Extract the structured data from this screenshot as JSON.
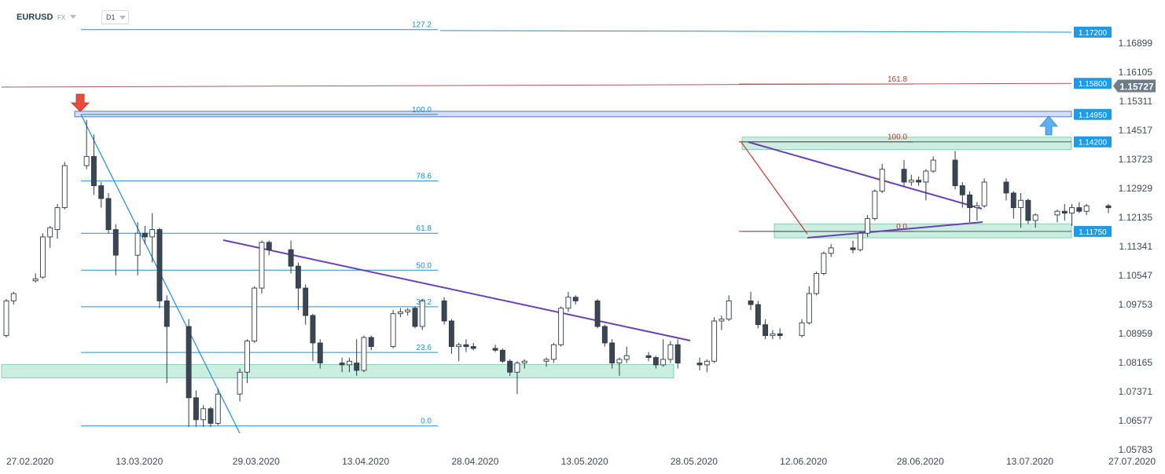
{
  "toolbar": {
    "symbol": "EURUSD",
    "market": "FX",
    "timeframe": "D1"
  },
  "colors": {
    "bull_body": "#ffffff",
    "bear_body": "#3a4654",
    "wick": "#2e3a46",
    "fib_blue": "#1e8fd5",
    "fib_red": "#c0392b",
    "trendline": "#6a3fb8",
    "zone": "#9fe2c6",
    "tag_blue": "#1e9be8",
    "current_tag": "#6e7b88",
    "arrow_down": "#e94b3c",
    "arrow_up": "#5ab0f0"
  },
  "chart_data": {
    "type": "candlestick",
    "title": "",
    "symbol": "EURUSD",
    "timeframe": "D1",
    "ylim": [
      1.0578,
      1.175
    ],
    "y_ticks": [
      "1.16899",
      "1.16105",
      "1.15311",
      "1.14517",
      "1.13723",
      "1.12929",
      "1.12135",
      "1.11341",
      "1.10547",
      "1.09753",
      "1.08959",
      "1.08165",
      "1.07371",
      "1.06577",
      "1.05783"
    ],
    "x_ticks": [
      "27.02.2020",
      "13.03.2020",
      "29.03.2020",
      "13.04.2020",
      "28.04.2020",
      "13.05.2020",
      "28.05.2020",
      "12.06.2020",
      "28.06.2020",
      "13.07.2020",
      "27.07.2020"
    ],
    "date_range": [
      "2020-02-27",
      "2020-07-27"
    ],
    "candles": [
      [
        "2020-02-27",
        1.089,
        1.099,
        1.0885,
        1.0985
      ],
      [
        "2020-02-28",
        1.0985,
        1.101,
        1.0975,
        1.1005
      ],
      [
        "2020-03-02",
        1.104,
        1.106,
        1.1035,
        1.1045
      ],
      [
        "2020-03-03",
        1.105,
        1.117,
        1.1045,
        1.116
      ],
      [
        "2020-03-04",
        1.116,
        1.119,
        1.113,
        1.1185
      ],
      [
        "2020-03-05",
        1.118,
        1.125,
        1.1155,
        1.124
      ],
      [
        "2020-03-06",
        1.124,
        1.1365,
        1.1235,
        1.1355
      ],
      [
        "2020-03-09",
        1.1355,
        1.148,
        1.1345,
        1.138
      ],
      [
        "2020-03-10",
        1.138,
        1.144,
        1.1275,
        1.13
      ],
      [
        "2020-03-11",
        1.13,
        1.131,
        1.124,
        1.1265
      ],
      [
        "2020-03-12",
        1.1265,
        1.128,
        1.117,
        1.118
      ],
      [
        "2020-03-13",
        1.118,
        1.1195,
        1.1055,
        1.111
      ],
      [
        "2020-03-16",
        1.111,
        1.12,
        1.1055,
        1.117
      ],
      [
        "2020-03-17",
        1.117,
        1.119,
        1.114,
        1.116
      ],
      [
        "2020-03-18",
        1.116,
        1.1225,
        1.109,
        1.118
      ],
      [
        "2020-03-19",
        1.118,
        1.1185,
        1.0965,
        1.0985
      ],
      [
        "2020-03-20",
        1.0985,
        1.1,
        1.076,
        1.0915
      ],
      [
        "2020-03-23",
        1.0915,
        1.0935,
        1.064,
        1.072
      ],
      [
        "2020-03-24",
        1.072,
        1.074,
        1.064,
        1.066
      ],
      [
        "2020-03-25",
        1.066,
        1.07,
        1.064,
        1.069
      ],
      [
        "2020-03-26",
        1.069,
        1.0695,
        1.064,
        1.065
      ],
      [
        "2020-03-27",
        1.065,
        1.0745,
        1.0645,
        1.073
      ],
      [
        "2020-03-30",
        1.073,
        1.08,
        1.071,
        1.079
      ],
      [
        "2020-03-31",
        1.079,
        1.088,
        1.076,
        1.0875
      ],
      [
        "2020-04-01",
        1.0875,
        1.1025,
        1.087,
        1.102
      ],
      [
        "2020-04-02",
        1.102,
        1.115,
        1.1005,
        1.1145
      ],
      [
        "2020-04-03",
        1.1145,
        1.115,
        1.111,
        1.1125
      ],
      [
        "2020-04-06",
        1.1125,
        1.115,
        1.106,
        1.108
      ],
      [
        "2020-04-07",
        1.108,
        1.109,
        1.096,
        1.102
      ],
      [
        "2020-04-08",
        1.102,
        1.103,
        1.092,
        1.0945
      ],
      [
        "2020-04-09",
        1.0945,
        1.095,
        1.082,
        1.087
      ],
      [
        "2020-04-10",
        1.087,
        1.088,
        1.08,
        1.0815
      ],
      [
        "2020-04-13",
        1.0815,
        1.083,
        1.079,
        1.081
      ],
      [
        "2020-04-14",
        1.081,
        1.083,
        1.079,
        1.082
      ],
      [
        "2020-04-15",
        1.0815,
        1.088,
        1.078,
        1.0795
      ],
      [
        "2020-04-16",
        1.0795,
        1.089,
        1.079,
        1.0885
      ],
      [
        "2020-04-17",
        1.0885,
        1.089,
        1.085,
        1.086
      ],
      [
        "2020-04-20",
        1.086,
        1.096,
        1.0855,
        1.095
      ],
      [
        "2020-04-21",
        1.095,
        1.0965,
        1.094,
        1.0955
      ],
      [
        "2020-04-22",
        1.0955,
        1.0965,
        1.0945,
        1.096
      ],
      [
        "2020-04-23",
        1.0965,
        1.097,
        1.091,
        1.0915
      ],
      [
        "2020-04-24",
        1.0915,
        1.099,
        1.0905,
        1.0985
      ],
      [
        "2020-04-27",
        1.0985,
        1.0995,
        1.092,
        1.093
      ],
      [
        "2020-04-28",
        1.093,
        1.0935,
        1.084,
        1.086
      ],
      [
        "2020-04-29",
        1.086,
        1.087,
        1.082,
        1.0865
      ],
      [
        "2020-04-30",
        1.0865,
        1.088,
        1.0845,
        1.086
      ],
      [
        "2020-05-01",
        1.086,
        1.087,
        1.085,
        1.0855
      ],
      [
        "2020-05-04",
        1.0855,
        1.0865,
        1.0845,
        1.085
      ],
      [
        "2020-05-05",
        1.085,
        1.0855,
        1.0815,
        1.082
      ],
      [
        "2020-05-06",
        1.082,
        1.0825,
        1.078,
        1.079
      ],
      [
        "2020-05-07",
        1.079,
        1.082,
        1.073,
        1.0815
      ],
      [
        "2020-05-08",
        1.0815,
        1.0825,
        1.08,
        1.082
      ],
      [
        "2020-05-11",
        1.082,
        1.083,
        1.0805,
        1.0825
      ],
      [
        "2020-05-12",
        1.0825,
        1.087,
        1.0815,
        1.0865
      ],
      [
        "2020-05-13",
        1.0865,
        1.097,
        1.086,
        1.0965
      ],
      [
        "2020-05-14",
        1.0965,
        1.101,
        1.0955,
        1.0995
      ],
      [
        "2020-05-15",
        1.0995,
        1.1,
        1.0975,
        1.0985
      ],
      [
        "2020-05-18",
        1.0985,
        1.099,
        1.091,
        1.0915
      ],
      [
        "2020-05-19",
        1.0915,
        1.092,
        1.086,
        1.087
      ],
      [
        "2020-05-20",
        1.087,
        1.088,
        1.08,
        1.0815
      ],
      [
        "2020-05-21",
        1.0815,
        1.083,
        1.078,
        1.0825
      ],
      [
        "2020-05-22",
        1.0825,
        1.086,
        1.0815,
        1.0835
      ],
      [
        "2020-05-25",
        1.0835,
        1.0845,
        1.082,
        1.083
      ],
      [
        "2020-05-26",
        1.083,
        1.0835,
        1.08,
        1.081
      ],
      [
        "2020-05-27",
        1.081,
        1.088,
        1.0805,
        1.0825
      ],
      [
        "2020-05-28",
        1.0825,
        1.0875,
        1.0815,
        1.0865
      ],
      [
        "2020-05-29",
        1.0865,
        1.088,
        1.08,
        1.0815
      ],
      [
        "2020-06-01",
        1.0815,
        1.083,
        1.0795,
        1.081
      ],
      [
        "2020-06-02",
        1.081,
        1.0825,
        1.079,
        1.082
      ],
      [
        "2020-06-03",
        1.082,
        1.094,
        1.0815,
        1.093
      ],
      [
        "2020-06-04",
        1.093,
        1.0945,
        1.0905,
        1.0935
      ],
      [
        "2020-06-05",
        1.0935,
        1.1,
        1.093,
        1.0985
      ],
      [
        "2020-06-08",
        1.0985,
        1.101,
        1.096,
        1.0975
      ],
      [
        "2020-06-09",
        1.0975,
        1.0985,
        1.091,
        1.092
      ],
      [
        "2020-06-10",
        1.092,
        1.0935,
        1.088,
        1.089
      ],
      [
        "2020-06-11",
        1.089,
        1.0905,
        1.088,
        1.0895
      ],
      [
        "2020-06-12",
        1.0895,
        1.091,
        1.088,
        1.089
      ],
      [
        "2020-06-15",
        1.089,
        1.0935,
        1.0885,
        1.0925
      ],
      [
        "2020-06-16",
        1.0925,
        1.1025,
        1.092,
        1.1005
      ],
      [
        "2020-06-17",
        1.1005,
        1.1065,
        1.1,
        1.106
      ],
      [
        "2020-06-18",
        1.106,
        1.112,
        1.1055,
        1.1115
      ],
      [
        "2020-06-19",
        1.1115,
        1.114,
        1.1105,
        1.113
      ],
      [
        "2020-06-22",
        1.113,
        1.115,
        1.1115,
        1.1125
      ],
      [
        "2020-06-23",
        1.1125,
        1.1175,
        1.112,
        1.117
      ],
      [
        "2020-06-24",
        1.117,
        1.122,
        1.116,
        1.121
      ],
      [
        "2020-06-25",
        1.121,
        1.129,
        1.1205,
        1.1285
      ],
      [
        "2020-06-26",
        1.1285,
        1.136,
        1.128,
        1.1345
      ],
      [
        "2020-06-29",
        1.1345,
        1.137,
        1.13,
        1.131
      ],
      [
        "2020-06-30",
        1.131,
        1.133,
        1.13,
        1.1315
      ],
      [
        "2020-07-01",
        1.1315,
        1.1325,
        1.13,
        1.131
      ],
      [
        "2020-07-02",
        1.131,
        1.1345,
        1.126,
        1.134
      ],
      [
        "2020-07-03",
        1.134,
        1.138,
        1.1335,
        1.137
      ],
      [
        "2020-07-06",
        1.137,
        1.1395,
        1.129,
        1.13
      ],
      [
        "2020-07-07",
        1.13,
        1.131,
        1.124,
        1.1275
      ],
      [
        "2020-07-08",
        1.1275,
        1.1285,
        1.12,
        1.124
      ],
      [
        "2020-07-09",
        1.124,
        1.1255,
        1.1205,
        1.1245
      ],
      [
        "2020-07-10",
        1.1245,
        1.132,
        1.124,
        1.131
      ],
      [
        "2020-07-13",
        1.131,
        1.132,
        1.126,
        1.128
      ],
      [
        "2020-07-14",
        1.128,
        1.1285,
        1.121,
        1.124
      ],
      [
        "2020-07-15",
        1.124,
        1.128,
        1.1185,
        1.126
      ],
      [
        "2020-07-16",
        1.126,
        1.1265,
        1.1195,
        1.1205
      ],
      [
        "2020-07-17",
        1.1205,
        1.1225,
        1.1185,
        1.122
      ],
      [
        "2020-07-20",
        1.122,
        1.1235,
        1.12,
        1.123
      ],
      [
        "2020-07-21",
        1.123,
        1.125,
        1.1205,
        1.1225
      ],
      [
        "2020-07-22",
        1.1225,
        1.125,
        1.119,
        1.124
      ],
      [
        "2020-07-23",
        1.124,
        1.1255,
        1.1225,
        1.123
      ],
      [
        "2020-07-24",
        1.123,
        1.125,
        1.122,
        1.1245
      ],
      [
        "2020-07-27",
        1.1245,
        1.125,
        1.1225,
        1.124
      ]
    ],
    "price_tags": [
      {
        "label": "1.17200",
        "price": 1.172
      },
      {
        "label": "1.15800",
        "price": 1.158
      },
      {
        "label": "1.14950",
        "price": 1.1495
      },
      {
        "label": "1.14200",
        "price": 1.142
      },
      {
        "label": "1.11750",
        "price": 1.1175
      }
    ],
    "current_price": {
      "label": "1.15727",
      "price": 1.1573
    },
    "fibonacci_1": {
      "color": "blue",
      "levels": [
        {
          "label": "127.2",
          "price": 1.1727
        },
        {
          "label": "100.0",
          "price": 1.1495
        },
        {
          "label": "78.6",
          "price": 1.1313
        },
        {
          "label": "61.8",
          "price": 1.117
        },
        {
          "label": "50.0",
          "price": 1.1069
        },
        {
          "label": "38.2",
          "price": 1.0969
        },
        {
          "label": "23.6",
          "price": 1.0844
        },
        {
          "label": "0.0",
          "price": 1.0643
        }
      ]
    },
    "fibonacci_2": {
      "color": "red",
      "levels": [
        {
          "label": "161.8",
          "price": 1.1578
        },
        {
          "label": "100.0",
          "price": 1.142
        },
        {
          "label": "0.0",
          "price": 1.1175
        }
      ]
    },
    "zones": [
      {
        "name": "support-zone-1",
        "low": 1.0785,
        "high": 1.08
      },
      {
        "name": "support-zone-2",
        "low": 1.1168,
        "high": 1.1185
      },
      {
        "name": "resistance-zone",
        "low": 1.141,
        "high": 1.1422
      }
    ]
  }
}
